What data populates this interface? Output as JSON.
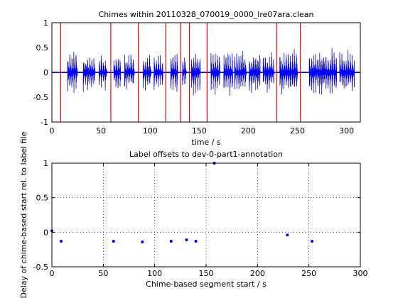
{
  "chart_data": [
    {
      "type": "line",
      "title": "Chimes within 20110328_070019_0000_lre07ara.clean",
      "xlabel": "time / s",
      "ylabel": "",
      "xlim": [
        0,
        314
      ],
      "ylim": [
        -1,
        1
      ],
      "xticks": [
        0,
        50,
        100,
        150,
        200,
        250,
        300
      ],
      "yticks": [
        -1,
        -0.5,
        0,
        0.5,
        1
      ],
      "xtick_labels": [
        "0",
        "50",
        "100",
        "150",
        "200",
        "250",
        "300"
      ],
      "ytick_labels": [
        "-1",
        "-0.5",
        "0",
        "0.5",
        "1"
      ],
      "grid": false,
      "waveform_color": "#0000ff",
      "marker_color": "#ff0000",
      "waveform_bursts": [
        {
          "start": 16,
          "end": 26,
          "amp": 0.45
        },
        {
          "start": 32,
          "end": 44,
          "amp": 0.4
        },
        {
          "start": 48,
          "end": 56,
          "amp": 0.35
        },
        {
          "start": 63,
          "end": 70,
          "amp": 0.38
        },
        {
          "start": 74,
          "end": 84,
          "amp": 0.4
        },
        {
          "start": 93,
          "end": 101,
          "amp": 0.38
        },
        {
          "start": 104,
          "end": 113,
          "amp": 0.36
        },
        {
          "start": 121,
          "end": 128,
          "amp": 0.4
        },
        {
          "start": 133,
          "end": 137,
          "amp": 0.35
        },
        {
          "start": 142,
          "end": 151,
          "amp": 0.42
        },
        {
          "start": 162,
          "end": 171,
          "amp": 0.4
        },
        {
          "start": 175,
          "end": 184,
          "amp": 0.44
        },
        {
          "start": 186,
          "end": 198,
          "amp": 0.4
        },
        {
          "start": 201,
          "end": 212,
          "amp": 0.42
        },
        {
          "start": 215,
          "end": 226,
          "amp": 0.4
        },
        {
          "start": 232,
          "end": 250,
          "amp": 0.45
        },
        {
          "start": 262,
          "end": 290,
          "amp": 0.45
        },
        {
          "start": 293,
          "end": 308,
          "amp": 0.42
        }
      ],
      "vertical_markers": [
        9,
        60,
        88,
        116,
        131,
        140,
        158,
        229,
        253
      ]
    },
    {
      "type": "scatter",
      "title": "Label offsets to dev-0-part1-annotation",
      "xlabel": "Chime-based segment start / s",
      "ylabel": "Delay of chime-based start rel. to label file",
      "xlim": [
        0,
        300
      ],
      "ylim": [
        -0.5,
        1
      ],
      "xticks": [
        0,
        50,
        100,
        150,
        200,
        250,
        300
      ],
      "yticks": [
        -0.5,
        0,
        0.5,
        1
      ],
      "xtick_labels": [
        "0",
        "50",
        "100",
        "150",
        "200",
        "250",
        "300"
      ],
      "ytick_labels": [
        "-0.5",
        "0",
        "0.5",
        "1"
      ],
      "grid": true,
      "marker_color": "#0000ff",
      "points": [
        {
          "x": 0,
          "y": 0.02
        },
        {
          "x": 9,
          "y": -0.13
        },
        {
          "x": 60,
          "y": -0.13
        },
        {
          "x": 88,
          "y": -0.14
        },
        {
          "x": 116,
          "y": -0.13
        },
        {
          "x": 131,
          "y": -0.11
        },
        {
          "x": 140,
          "y": -0.13
        },
        {
          "x": 158,
          "y": 1.0
        },
        {
          "x": 229,
          "y": -0.04
        },
        {
          "x": 253,
          "y": -0.13
        }
      ]
    }
  ]
}
